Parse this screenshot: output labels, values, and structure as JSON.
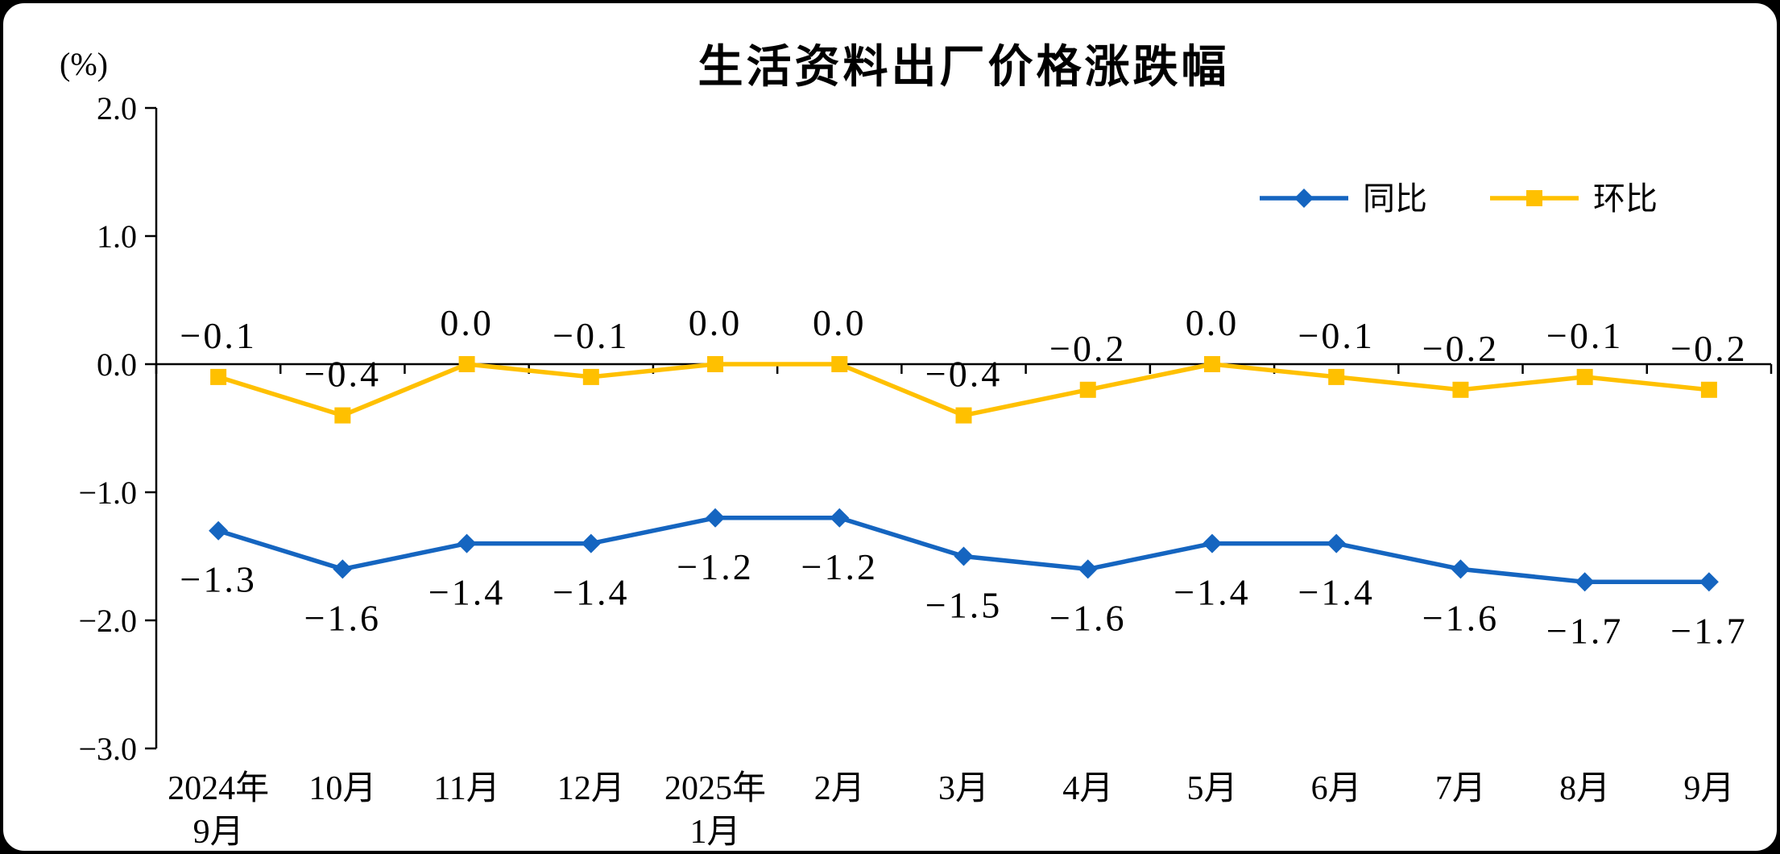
{
  "chart_data": {
    "type": "line",
    "title": "生活资料出厂价格涨跌幅",
    "ylabel": "(%)",
    "xlabel": "",
    "categories": [
      "2024年\n9月",
      "10月",
      "11月",
      "12月",
      "2025年\n1月",
      "2月",
      "3月",
      "4月",
      "5月",
      "6月",
      "7月",
      "8月",
      "9月"
    ],
    "series": [
      {
        "name": "同比",
        "color": "#1565C0",
        "marker": "diamond",
        "label_position": "below",
        "values": [
          -1.3,
          -1.6,
          -1.4,
          -1.4,
          -1.2,
          -1.2,
          -1.5,
          -1.6,
          -1.4,
          -1.4,
          -1.6,
          -1.7,
          -1.7
        ]
      },
      {
        "name": "环比",
        "color": "#FFC000",
        "marker": "square",
        "label_position": "above",
        "values": [
          -0.1,
          -0.4,
          0.0,
          -0.1,
          0.0,
          0.0,
          -0.4,
          -0.2,
          0.0,
          -0.1,
          -0.2,
          -0.1,
          -0.2
        ]
      }
    ],
    "ylim": [
      -3.0,
      2.0
    ],
    "yticks": [
      2.0,
      1.0,
      0.0,
      -1.0,
      -2.0,
      -3.0
    ],
    "grid": false,
    "legend_position": "top-right",
    "axis_color": "#000000"
  }
}
